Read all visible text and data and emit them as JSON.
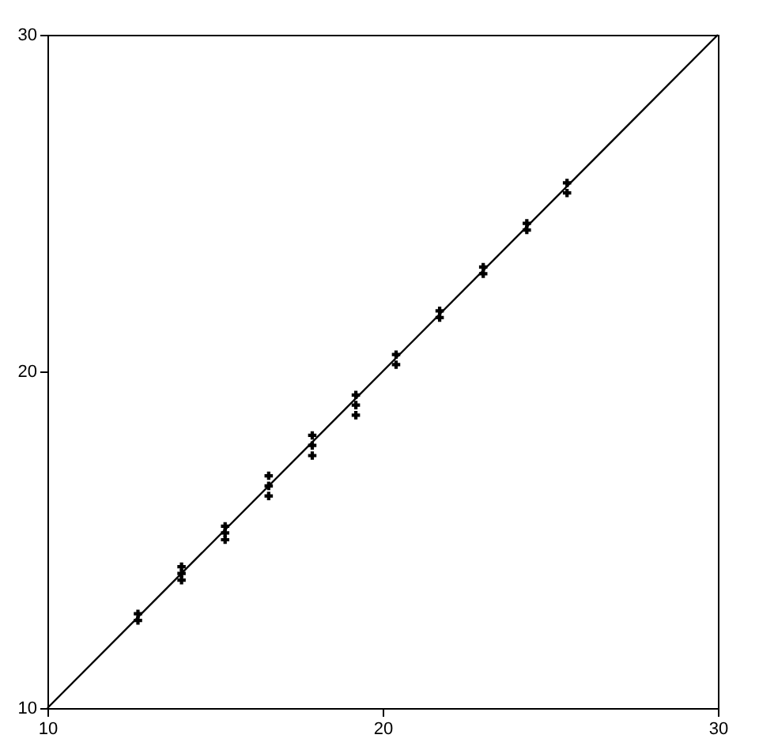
{
  "chart_data": {
    "type": "scatter",
    "xlim": [
      10,
      30
    ],
    "ylim": [
      10,
      30
    ],
    "xticks": [
      10,
      20,
      30
    ],
    "yticks": [
      10,
      20,
      30
    ],
    "marker": "cross",
    "grid": false,
    "series": [
      {
        "color": "#000000",
        "x": [
          12.7,
          12.7,
          14.0,
          14.0,
          14.0,
          15.3,
          15.3,
          15.3,
          16.6,
          16.6,
          16.6,
          17.9,
          17.9,
          17.9,
          19.2,
          19.2,
          19.2,
          20.4,
          20.4,
          21.7,
          21.7,
          23.0,
          23.0,
          24.3,
          24.3,
          25.5,
          25.5
        ],
        "values": [
          12.6,
          12.8,
          13.8,
          14.0,
          14.2,
          15.0,
          15.2,
          15.4,
          16.3,
          16.6,
          16.9,
          17.5,
          17.8,
          18.1,
          18.7,
          19.0,
          19.3,
          20.2,
          20.5,
          21.6,
          21.8,
          22.9,
          23.1,
          24.2,
          24.4,
          25.3,
          25.6
        ]
      },
      {
        "type": "line",
        "color": "#000000",
        "x": [
          10,
          30
        ],
        "values": [
          10,
          30
        ],
        "marker": "none",
        "line_style": "solid"
      }
    ]
  }
}
